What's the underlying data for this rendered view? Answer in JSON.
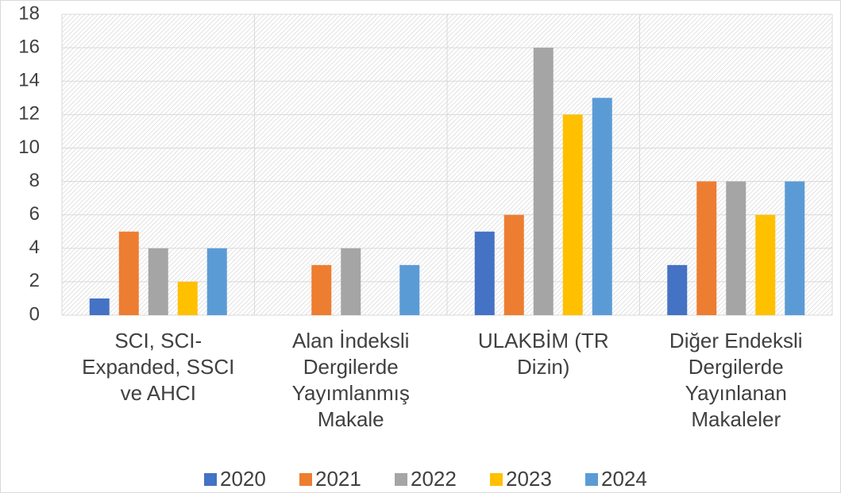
{
  "chart_data": {
    "type": "bar",
    "categories": [
      "SCI, SCI-Expanded, SSCI ve AHCI",
      "Alan İndeksli Dergilerde Yayımlanmış Makale",
      "ULAKBİM (TR Dizin)",
      "Diğer Endeksli Dergilerde Yayınlanan Makaleler"
    ],
    "series": [
      {
        "name": "2020",
        "color": "#4472c4",
        "values": [
          1,
          0,
          5,
          3
        ]
      },
      {
        "name": "2021",
        "color": "#ed7d31",
        "values": [
          5,
          3,
          6,
          8
        ]
      },
      {
        "name": "2022",
        "color": "#a5a5a5",
        "values": [
          4,
          4,
          16,
          8
        ]
      },
      {
        "name": "2023",
        "color": "#ffc000",
        "values": [
          2,
          0,
          12,
          6
        ]
      },
      {
        "name": "2024",
        "color": "#5b9bd5",
        "values": [
          4,
          3,
          13,
          8
        ]
      }
    ],
    "ylim": [
      0,
      18
    ],
    "yticks": [
      0,
      2,
      4,
      6,
      8,
      10,
      12,
      14,
      16,
      18
    ],
    "grid": true,
    "legend": "bottom"
  }
}
